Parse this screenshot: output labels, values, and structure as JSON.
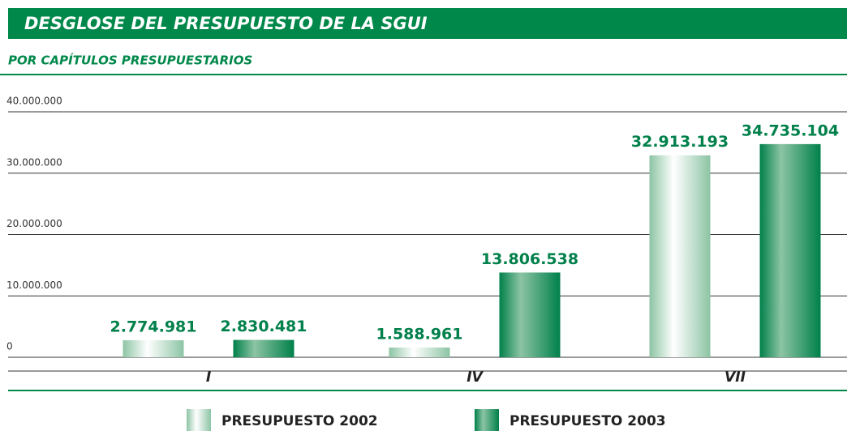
{
  "chart_data": {
    "type": "bar",
    "title": "DESGLOSE DEL PRESUPUESTO DE LA SGUI",
    "subtitle": "POR CAPÍTULOS PRESUPUESTARIOS",
    "categories": [
      "I",
      "IV",
      "VII"
    ],
    "series": [
      {
        "name": "PRESUPUESTO 2002",
        "color": "#8cc4a4",
        "values": [
          2774981,
          1588961,
          32913193
        ],
        "value_labels": [
          "2.774.981",
          "1.588.961",
          "32.913.193"
        ]
      },
      {
        "name": "PRESUPUESTO 2003",
        "color": "#00804a",
        "values": [
          2830481,
          13806538,
          34735104
        ],
        "value_labels": [
          "2.830.481",
          "13.806.538",
          "34.735.104"
        ]
      }
    ],
    "ylim": [
      0,
      40000000
    ],
    "yticks": [
      0,
      {
        "value": 10000000,
        "label": "10.000.000"
      },
      {
        "value": 20000000,
        "label": "20.000.000"
      },
      {
        "value": 30000000,
        "label": "30.000.000"
      },
      {
        "value": 40000000,
        "label": "40.000.000"
      }
    ],
    "grid": true
  }
}
